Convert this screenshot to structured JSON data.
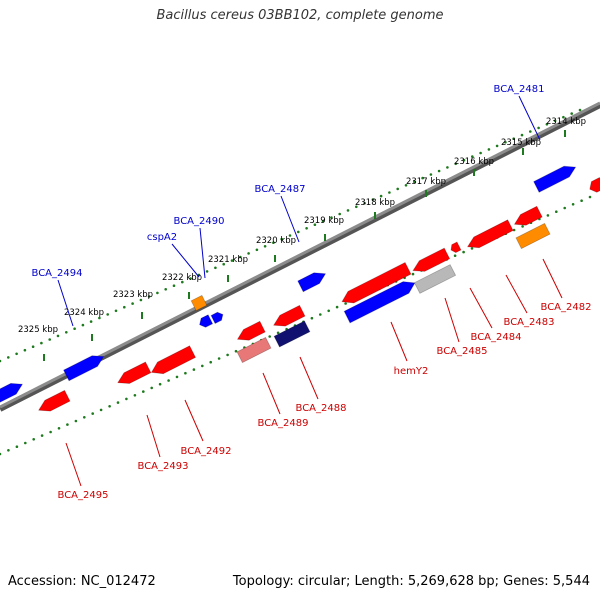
{
  "title": "Bacillus cereus 03BB102, complete genome",
  "accession": "Accession: NC_012472",
  "topology": "Topology: circular; Length: 5,269,628 bp; Genes: 5,544",
  "colors": {
    "backbone": "#6d6d6d",
    "ticks": "#1e7a1e",
    "forward_gene": "#0000ff",
    "reverse_gene": "#ff0000",
    "gene_other": "#ff8c00",
    "gene_pink": "#e87878",
    "gene_navy": "#101070",
    "gene_gray": "#b8b8b8",
    "label_forward": "#0000cc",
    "label_reverse": "#cc0000",
    "scale_text": "#000000"
  },
  "scale_labels": [
    "2314 kbp",
    "2315 kbp",
    "2316 kbp",
    "2317 kbp",
    "2318 kbp",
    "2319 kbp",
    "2320 kbp",
    "2321 kbp",
    "2322 kbp",
    "2323 kbp",
    "2324 kbp",
    "2325 kbp"
  ],
  "forward_labels": [
    "BCA_2481",
    "BCA_2487",
    "BCA_2490",
    "cspA2",
    "BCA_2494"
  ],
  "reverse_labels": [
    "BCA_2482",
    "BCA_2483",
    "BCA_2484",
    "BCA_2485",
    "hemY2",
    "BCA_2488",
    "BCA_2489",
    "BCA_2492",
    "BCA_2493",
    "BCA_2495"
  ]
}
